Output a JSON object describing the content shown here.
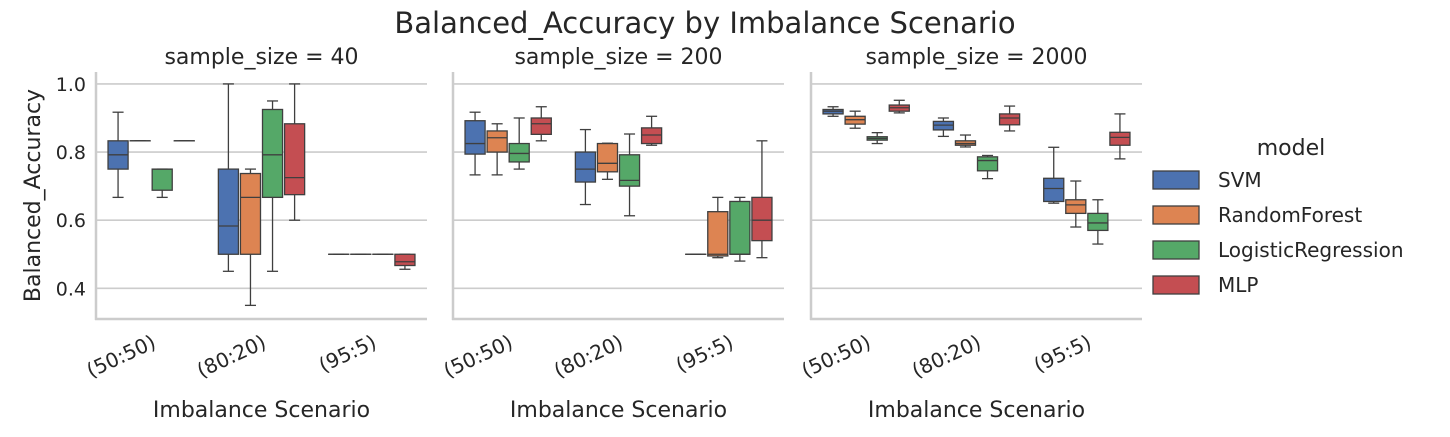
{
  "chart_data": {
    "type": "box",
    "title": "Balanced_Accuracy by Imbalance Scenario",
    "ylabel": "Balanced_Accuracy",
    "xlabel": "Imbalance Scenario",
    "ylim": [
      0.31,
      1.035
    ],
    "yticks": [
      0.4,
      0.6,
      0.8,
      1.0
    ],
    "grid": "horizontal",
    "legend": {
      "title": "model",
      "placement": "right",
      "entries": [
        "SVM",
        "RandomForest",
        "LogisticRegression",
        "MLP"
      ]
    },
    "colors": {
      "SVM": "#4C72B0",
      "RandomForest": "#DD8452",
      "LogisticRegression": "#55A868",
      "MLP": "#C44E52"
    },
    "categories": [
      "(50:50)",
      "(80:20)",
      "(95:5)"
    ],
    "panels": [
      {
        "title": "sample_size = 40",
        "boxes": {
          "SVM": [
            {
              "whislo": 0.667,
              "q1": 0.75,
              "med": 0.792,
              "q3": 0.833,
              "whishi": 0.917
            },
            {
              "whislo": 0.45,
              "q1": 0.5,
              "med": 0.583,
              "q3": 0.75,
              "whishi": 1.0
            },
            {
              "whislo": 0.5,
              "q1": 0.5,
              "med": 0.5,
              "q3": 0.5,
              "whishi": 0.5
            }
          ],
          "RandomForest": [
            {
              "whislo": 0.833,
              "q1": 0.833,
              "med": 0.833,
              "q3": 0.833,
              "whishi": 0.833
            },
            {
              "whislo": 0.35,
              "q1": 0.5,
              "med": 0.667,
              "q3": 0.737,
              "whishi": 0.75
            },
            {
              "whislo": 0.5,
              "q1": 0.5,
              "med": 0.5,
              "q3": 0.5,
              "whishi": 0.5
            }
          ],
          "LogisticRegression": [
            {
              "whislo": 0.667,
              "q1": 0.688,
              "med": 0.75,
              "q3": 0.75,
              "whishi": 0.75
            },
            {
              "whislo": 0.45,
              "q1": 0.667,
              "med": 0.792,
              "q3": 0.925,
              "whishi": 0.95
            },
            {
              "whislo": 0.5,
              "q1": 0.5,
              "med": 0.5,
              "q3": 0.5,
              "whishi": 0.5
            }
          ],
          "MLP": [
            {
              "whislo": 0.833,
              "q1": 0.833,
              "med": 0.833,
              "q3": 0.833,
              "whishi": 0.833
            },
            {
              "whislo": 0.6,
              "q1": 0.675,
              "med": 0.725,
              "q3": 0.883,
              "whishi": 1.0
            },
            {
              "whislo": 0.456,
              "q1": 0.467,
              "med": 0.478,
              "q3": 0.5,
              "whishi": 0.5
            }
          ]
        }
      },
      {
        "title": "sample_size = 200",
        "boxes": {
          "SVM": [
            {
              "whislo": 0.733,
              "q1": 0.794,
              "med": 0.825,
              "q3": 0.892,
              "whishi": 0.917
            },
            {
              "whislo": 0.646,
              "q1": 0.712,
              "med": 0.75,
              "q3": 0.8,
              "whishi": 0.866
            },
            {
              "whislo": 0.5,
              "q1": 0.5,
              "med": 0.5,
              "q3": 0.5,
              "whishi": 0.5
            }
          ],
          "RandomForest": [
            {
              "whislo": 0.733,
              "q1": 0.8,
              "med": 0.842,
              "q3": 0.862,
              "whishi": 0.883
            },
            {
              "whislo": 0.72,
              "q1": 0.742,
              "med": 0.767,
              "q3": 0.825,
              "whishi": 0.826
            },
            {
              "whislo": 0.49,
              "q1": 0.495,
              "med": 0.5,
              "q3": 0.625,
              "whishi": 0.667
            }
          ],
          "LogisticRegression": [
            {
              "whislo": 0.75,
              "q1": 0.771,
              "med": 0.796,
              "q3": 0.825,
              "whishi": 0.9
            },
            {
              "whislo": 0.613,
              "q1": 0.7,
              "med": 0.717,
              "q3": 0.792,
              "whishi": 0.853
            },
            {
              "whislo": 0.48,
              "q1": 0.5,
              "med": 0.5,
              "q3": 0.655,
              "whishi": 0.667
            }
          ],
          "MLP": [
            {
              "whislo": 0.833,
              "q1": 0.852,
              "med": 0.883,
              "q3": 0.9,
              "whishi": 0.933
            },
            {
              "whislo": 0.82,
              "q1": 0.825,
              "med": 0.85,
              "q3": 0.871,
              "whishi": 0.905
            },
            {
              "whislo": 0.49,
              "q1": 0.54,
              "med": 0.6,
              "q3": 0.667,
              "whishi": 0.833
            }
          ]
        }
      },
      {
        "title": "sample_size = 2000",
        "boxes": {
          "SVM": [
            {
              "whislo": 0.905,
              "q1": 0.912,
              "med": 0.92,
              "q3": 0.925,
              "whishi": 0.933
            },
            {
              "whislo": 0.846,
              "q1": 0.865,
              "med": 0.879,
              "q3": 0.89,
              "whishi": 0.9
            },
            {
              "whislo": 0.65,
              "q1": 0.655,
              "med": 0.693,
              "q3": 0.723,
              "whishi": 0.814
            }
          ],
          "RandomForest": [
            {
              "whislo": 0.87,
              "q1": 0.882,
              "med": 0.895,
              "q3": 0.905,
              "whishi": 0.92
            },
            {
              "whislo": 0.815,
              "q1": 0.82,
              "med": 0.825,
              "q3": 0.833,
              "whishi": 0.85
            },
            {
              "whislo": 0.58,
              "q1": 0.62,
              "med": 0.645,
              "q3": 0.66,
              "whishi": 0.715
            }
          ],
          "LogisticRegression": [
            {
              "whislo": 0.825,
              "q1": 0.835,
              "med": 0.84,
              "q3": 0.845,
              "whishi": 0.857
            },
            {
              "whislo": 0.722,
              "q1": 0.745,
              "med": 0.775,
              "q3": 0.786,
              "whishi": 0.79
            },
            {
              "whislo": 0.53,
              "q1": 0.57,
              "med": 0.592,
              "q3": 0.62,
              "whishi": 0.66
            }
          ],
          "MLP": [
            {
              "whislo": 0.915,
              "q1": 0.92,
              "med": 0.93,
              "q3": 0.938,
              "whishi": 0.952
            },
            {
              "whislo": 0.862,
              "q1": 0.88,
              "med": 0.9,
              "q3": 0.912,
              "whishi": 0.935
            },
            {
              "whislo": 0.78,
              "q1": 0.82,
              "med": 0.843,
              "q3": 0.858,
              "whishi": 0.912
            }
          ]
        }
      }
    ]
  }
}
